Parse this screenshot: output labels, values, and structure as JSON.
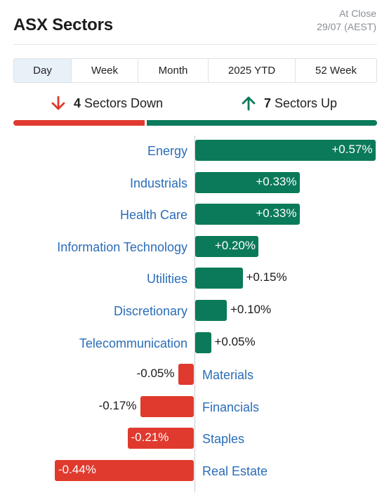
{
  "header": {
    "title": "ASX Sectors",
    "status_line1": "At Close",
    "status_line2": "29/07 (AEST)"
  },
  "tabs": [
    {
      "label": "Day",
      "active": true
    },
    {
      "label": "Week",
      "active": false
    },
    {
      "label": "Month",
      "active": false
    },
    {
      "label": "2025 YTD",
      "active": false
    },
    {
      "label": "52 Week",
      "active": false
    }
  ],
  "summary": {
    "down_count": "4",
    "down_text": "Sectors Down",
    "up_count": "7",
    "up_text": "Sectors Up"
  },
  "colors": {
    "up": "#0b7a5a",
    "down": "#e03a2e",
    "link": "#2a6db8"
  },
  "chart_data": {
    "type": "bar",
    "orientation": "horizontal",
    "categories": [
      "Energy",
      "Industrials",
      "Health Care",
      "Information Technology",
      "Utilities",
      "Discretionary",
      "Telecommunication",
      "Materials",
      "Financials",
      "Staples",
      "Real Estate"
    ],
    "values": [
      0.57,
      0.33,
      0.33,
      0.2,
      0.15,
      0.1,
      0.05,
      -0.05,
      -0.17,
      -0.21,
      -0.44
    ],
    "value_labels": [
      "+0.57%",
      "+0.33%",
      "+0.33%",
      "+0.20%",
      "+0.15%",
      "+0.10%",
      "+0.05%",
      "-0.05%",
      "-0.17%",
      "-0.21%",
      "-0.44%"
    ]
  }
}
